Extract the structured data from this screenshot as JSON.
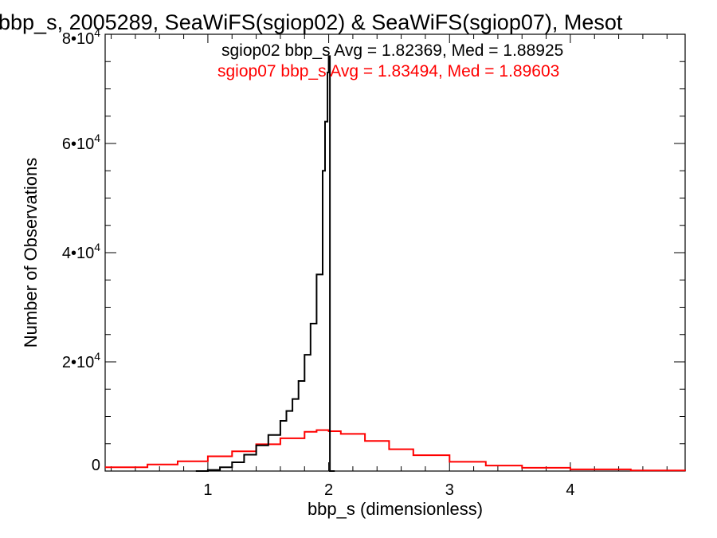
{
  "chart_data": {
    "type": "line",
    "title": "bbp_s, 2005289, SeaWiFS(sgiop02) & SeaWiFS(sgiop07), Mesot",
    "xlabel": "bbp_s (dimensionless)",
    "ylabel": "Number of Observations",
    "xlim": [
      0.15,
      4.95
    ],
    "ylim": [
      0,
      80000
    ],
    "x_ticks": [
      {
        "value": 1,
        "label": "1"
      },
      {
        "value": 2,
        "label": "2"
      },
      {
        "value": 3,
        "label": "3"
      },
      {
        "value": 4,
        "label": "4"
      }
    ],
    "y_ticks": [
      {
        "value": 0,
        "label": "0",
        "mantissa": "",
        "exp": ""
      },
      {
        "value": 20000,
        "label": "",
        "mantissa": "2•10",
        "exp": "4"
      },
      {
        "value": 40000,
        "label": "",
        "mantissa": "4•10",
        "exp": "4"
      },
      {
        "value": 60000,
        "label": "",
        "mantissa": "6•10",
        "exp": "4"
      },
      {
        "value": 80000,
        "label": "",
        "mantissa": "8•10",
        "exp": "4"
      }
    ],
    "grid": false,
    "series": [
      {
        "name": "sgiop02",
        "color": "#000000",
        "stat_label": "sgiop02 bbp_s Avg = 1.82369, Med = 1.88925",
        "x": [
          0.9,
          1.0,
          1.1,
          1.2,
          1.3,
          1.4,
          1.5,
          1.6,
          1.65,
          1.7,
          1.75,
          1.8,
          1.85,
          1.9,
          1.95,
          1.97,
          1.99,
          2.0,
          2.01,
          2.05
        ],
        "y": [
          0,
          200,
          700,
          1600,
          3000,
          4700,
          6600,
          9200,
          11000,
          13200,
          16500,
          21300,
          27000,
          36000,
          55000,
          64000,
          73000,
          76000,
          0,
          0
        ]
      },
      {
        "name": "sgiop07",
        "color": "#ff0000",
        "stat_label": "sgiop07 bbp_s Avg = 1.83494, Med = 1.89603",
        "x": [
          0.15,
          0.5,
          0.75,
          1.0,
          1.2,
          1.4,
          1.6,
          1.8,
          1.9,
          2.0,
          2.1,
          2.3,
          2.5,
          2.7,
          3.0,
          3.3,
          3.6,
          4.0,
          4.5,
          4.95
        ],
        "y": [
          700,
          1200,
          1800,
          2700,
          3600,
          4900,
          6000,
          7200,
          7500,
          7300,
          6800,
          5500,
          4000,
          2900,
          1700,
          1000,
          600,
          300,
          100,
          50
        ]
      }
    ]
  }
}
